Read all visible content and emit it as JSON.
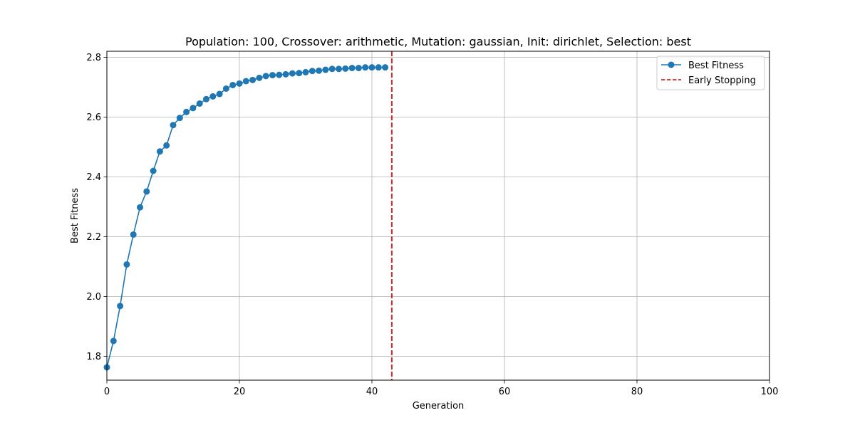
{
  "chart_data": {
    "type": "line",
    "title": "Population: 100, Crossover: arithmetic, Mutation: gaussian, Init: dirichlet, Selection: best",
    "xlabel": "Generation",
    "ylabel": "Best Fitness",
    "xlim": [
      0,
      100
    ],
    "ylim": [
      1.72,
      2.82
    ],
    "xticks": [
      0,
      20,
      40,
      60,
      80,
      100
    ],
    "yticks": [
      1.8,
      2.0,
      2.2,
      2.4,
      2.6,
      2.8
    ],
    "xtick_labels": [
      "0",
      "20",
      "40",
      "60",
      "80",
      "100"
    ],
    "ytick_labels": [
      "1.8",
      "2.0",
      "2.2",
      "2.4",
      "2.6",
      "2.8"
    ],
    "grid": true,
    "legend_position": "top-right",
    "series": [
      {
        "name": "Best Fitness",
        "color": "#1f77b4",
        "marker": "circle",
        "x": [
          0,
          1,
          2,
          3,
          4,
          5,
          6,
          7,
          8,
          9,
          10,
          11,
          12,
          13,
          14,
          15,
          16,
          17,
          18,
          19,
          20,
          21,
          22,
          23,
          24,
          25,
          26,
          27,
          28,
          29,
          30,
          31,
          32,
          33,
          34,
          35,
          36,
          37,
          38,
          39,
          40,
          41,
          42
        ],
        "y": [
          1.763,
          1.851,
          1.968,
          2.107,
          2.207,
          2.298,
          2.351,
          2.42,
          2.485,
          2.505,
          2.573,
          2.597,
          2.617,
          2.63,
          2.645,
          2.66,
          2.669,
          2.677,
          2.695,
          2.707,
          2.712,
          2.72,
          2.724,
          2.731,
          2.737,
          2.74,
          2.741,
          2.743,
          2.746,
          2.747,
          2.75,
          2.754,
          2.755,
          2.758,
          2.761,
          2.761,
          2.762,
          2.764,
          2.764,
          2.766,
          2.766,
          2.766,
          2.766
        ]
      }
    ],
    "vlines": [
      {
        "name": "Early Stopping",
        "x": 43,
        "color": "#d62728",
        "style": "dashed"
      }
    ]
  }
}
